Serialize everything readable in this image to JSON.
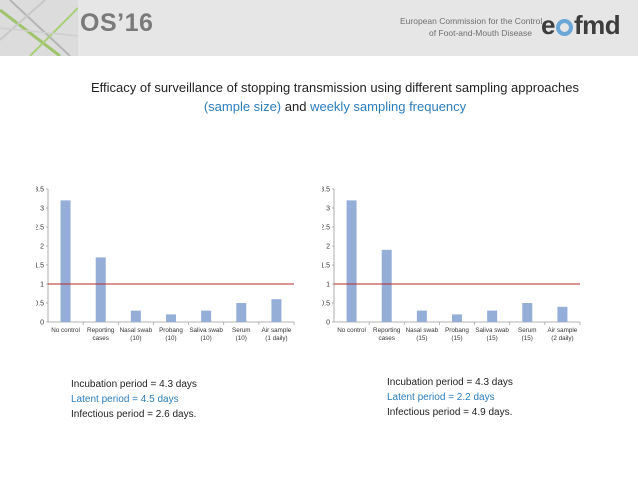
{
  "header": {
    "conference": "OS’16",
    "org_line1": "European Commission for the Control",
    "org_line2": "of Foot-and-Mouth Disease",
    "logo_pre": "e",
    "logo_post": "fmd"
  },
  "title": {
    "line1": "Efficacy of surveillance of stopping transmission using different sampling approaches",
    "line2_part1": "(sample size)",
    "line2_part2": "and",
    "line2_part3": "weekly sampling frequency"
  },
  "colors": {
    "bar": "#94aed8",
    "threshold": "#b52a2a",
    "accent": "#2a7dbd"
  },
  "chart_data": [
    {
      "type": "bar",
      "categories": [
        [
          "No control"
        ],
        [
          "Reporting",
          "cases"
        ],
        [
          "Nasal swab",
          "(10)"
        ],
        [
          "Probang",
          "(10)"
        ],
        [
          "Saliva swab",
          "(10)"
        ],
        [
          "Serum",
          "(10)"
        ],
        [
          "Air sample",
          "(1 daily)"
        ]
      ],
      "values": [
        3.2,
        1.7,
        0.3,
        0.2,
        0.3,
        0.5,
        0.6
      ],
      "threshold": 1,
      "ylim": [
        0,
        3.5
      ],
      "yticks": [
        "0",
        "0.5",
        "1",
        "1.5",
        "2",
        "2.5",
        "3",
        "3.5"
      ]
    },
    {
      "type": "bar",
      "categories": [
        [
          "No control"
        ],
        [
          "Reporting",
          "cases"
        ],
        [
          "Nasal swab",
          "(15)"
        ],
        [
          "Probang",
          "(15)"
        ],
        [
          "Saliva swab",
          "(15)"
        ],
        [
          "Serum",
          "(15)"
        ],
        [
          "Air sample",
          "(2 daily)"
        ]
      ],
      "values": [
        3.2,
        1.9,
        0.3,
        0.2,
        0.3,
        0.5,
        0.4
      ],
      "threshold": 1,
      "ylim": [
        0,
        3.5
      ],
      "yticks": [
        "0",
        "0.5",
        "1",
        "1.5",
        "2",
        "2.5",
        "3",
        "3.5"
      ]
    }
  ],
  "notes": [
    {
      "incubation": "Incubation period = 4.3 days",
      "latent": "Latent period = 4.5 days",
      "infectious": "Infectious period = 2.6 days."
    },
    {
      "incubation": "Incubation period = 4.3 days",
      "latent": "Latent period = 2.2 days",
      "infectious": "Infectious period = 4.9 days."
    }
  ]
}
